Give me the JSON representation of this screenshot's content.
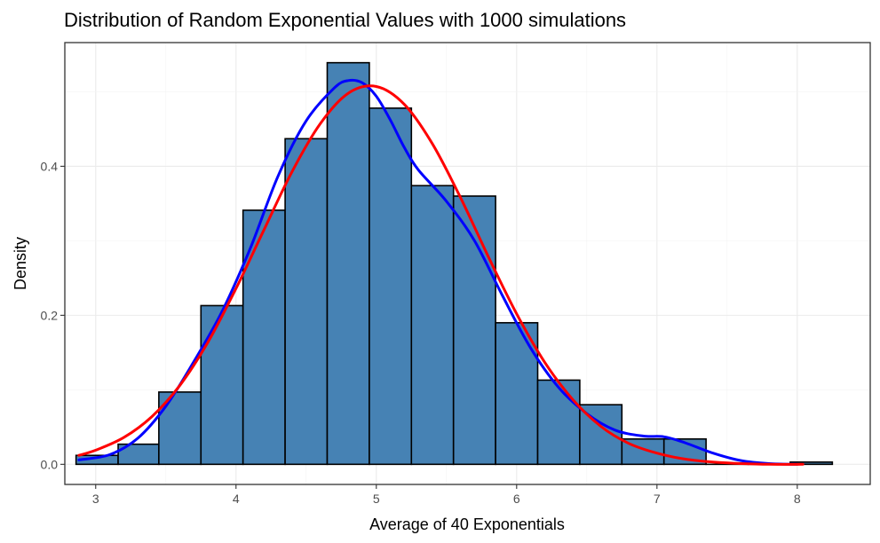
{
  "chart_data": {
    "type": "bar",
    "title": "Distribution of Random Exponential Values with 1000 simulations",
    "xlabel": "Average of 40 Exponentials",
    "ylabel": "Density",
    "xlim": [
      2.78,
      8.52
    ],
    "ylim": [
      -0.027,
      0.566
    ],
    "x_ticks": [
      3,
      4,
      5,
      6,
      7,
      8
    ],
    "x_tick_labels": [
      "3",
      "4",
      "5",
      "6",
      "7",
      "8"
    ],
    "y_ticks": [
      0.0,
      0.2,
      0.4
    ],
    "y_tick_labels": [
      "0.0",
      "0.2",
      "0.4"
    ],
    "grid": true,
    "histogram": {
      "fill": "#4682B4",
      "edge": "#000000",
      "bins": [
        {
          "x0": 2.86,
          "x1": 3.16,
          "density": 0.012
        },
        {
          "x0": 3.16,
          "x1": 3.45,
          "density": 0.027
        },
        {
          "x0": 3.45,
          "x1": 3.75,
          "density": 0.097
        },
        {
          "x0": 3.75,
          "x1": 4.05,
          "density": 0.213
        },
        {
          "x0": 4.05,
          "x1": 4.35,
          "density": 0.341
        },
        {
          "x0": 4.35,
          "x1": 4.65,
          "density": 0.437
        },
        {
          "x0": 4.65,
          "x1": 4.95,
          "density": 0.539
        },
        {
          "x0": 4.95,
          "x1": 5.25,
          "density": 0.478
        },
        {
          "x0": 5.25,
          "x1": 5.55,
          "density": 0.374
        },
        {
          "x0": 5.55,
          "x1": 5.85,
          "density": 0.36
        },
        {
          "x0": 5.85,
          "x1": 6.15,
          "density": 0.19
        },
        {
          "x0": 6.15,
          "x1": 6.45,
          "density": 0.113
        },
        {
          "x0": 6.45,
          "x1": 6.75,
          "density": 0.08
        },
        {
          "x0": 6.75,
          "x1": 7.05,
          "density": 0.034
        },
        {
          "x0": 7.05,
          "x1": 7.35,
          "density": 0.034
        },
        {
          "x0": 7.35,
          "x1": 7.65,
          "density": 0.0
        },
        {
          "x0": 7.65,
          "x1": 7.95,
          "density": 0.0
        },
        {
          "x0": 7.95,
          "x1": 8.25,
          "density": 0.003
        }
      ]
    },
    "series": [
      {
        "kind": "density-curve",
        "color": "#0000FF",
        "points": [
          [
            2.88,
            0.006
          ],
          [
            3.1,
            0.013
          ],
          [
            3.3,
            0.035
          ],
          [
            3.5,
            0.078
          ],
          [
            3.7,
            0.138
          ],
          [
            3.9,
            0.205
          ],
          [
            4.1,
            0.289
          ],
          [
            4.3,
            0.387
          ],
          [
            4.5,
            0.461
          ],
          [
            4.7,
            0.505
          ],
          [
            4.8,
            0.515
          ],
          [
            4.9,
            0.512
          ],
          [
            5.0,
            0.494
          ],
          [
            5.1,
            0.462
          ],
          [
            5.2,
            0.425
          ],
          [
            5.3,
            0.395
          ],
          [
            5.5,
            0.353
          ],
          [
            5.7,
            0.3
          ],
          [
            5.9,
            0.226
          ],
          [
            6.1,
            0.156
          ],
          [
            6.3,
            0.103
          ],
          [
            6.5,
            0.068
          ],
          [
            6.7,
            0.046
          ],
          [
            6.9,
            0.038
          ],
          [
            7.05,
            0.037
          ],
          [
            7.2,
            0.029
          ],
          [
            7.4,
            0.015
          ],
          [
            7.6,
            0.005
          ],
          [
            7.8,
            0.001
          ],
          [
            8.0,
            0.0
          ]
        ]
      },
      {
        "kind": "normal-curve",
        "color": "#FF0000",
        "points": [
          [
            2.88,
            0.012
          ],
          [
            3.0,
            0.019
          ],
          [
            3.2,
            0.036
          ],
          [
            3.4,
            0.064
          ],
          [
            3.6,
            0.106
          ],
          [
            3.8,
            0.164
          ],
          [
            4.0,
            0.236
          ],
          [
            4.2,
            0.315
          ],
          [
            4.4,
            0.393
          ],
          [
            4.6,
            0.457
          ],
          [
            4.8,
            0.498
          ],
          [
            5.0,
            0.507
          ],
          [
            5.2,
            0.483
          ],
          [
            5.4,
            0.43
          ],
          [
            5.6,
            0.358
          ],
          [
            5.8,
            0.278
          ],
          [
            6.0,
            0.202
          ],
          [
            6.2,
            0.137
          ],
          [
            6.4,
            0.087
          ],
          [
            6.6,
            0.051
          ],
          [
            6.8,
            0.028
          ],
          [
            7.0,
            0.015
          ],
          [
            7.2,
            0.007
          ],
          [
            7.4,
            0.003
          ],
          [
            7.6,
            0.001
          ],
          [
            7.8,
            0.0
          ],
          [
            8.04,
            0.0
          ]
        ]
      }
    ]
  }
}
